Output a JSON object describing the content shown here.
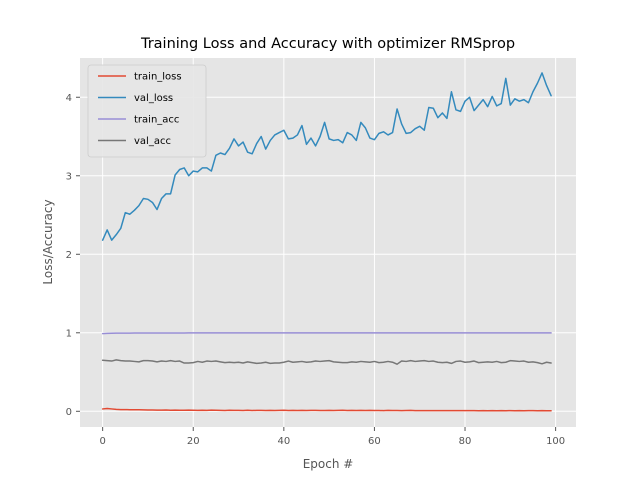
{
  "chart_data": {
    "type": "line",
    "title": "Training Loss and Accuracy with optimizer RMSprop",
    "xlabel": "Epoch #",
    "ylabel": "Loss/Accuracy",
    "xlim": [
      -5,
      104.5
    ],
    "ylim": [
      -0.2,
      4.5
    ],
    "x_ticks": [
      0,
      20,
      40,
      60,
      80,
      100
    ],
    "y_ticks": [
      0,
      1,
      2,
      3,
      4
    ],
    "grid": true,
    "legend_position": "top-left",
    "background_color": "#e5e5e5",
    "grid_color": "#ffffff",
    "x": [
      0,
      1,
      2,
      3,
      4,
      5,
      6,
      7,
      8,
      9,
      10,
      11,
      12,
      13,
      14,
      15,
      16,
      17,
      18,
      19,
      20,
      21,
      22,
      23,
      24,
      25,
      26,
      27,
      28,
      29,
      30,
      31,
      32,
      33,
      34,
      35,
      36,
      37,
      38,
      39,
      40,
      41,
      42,
      43,
      44,
      45,
      46,
      47,
      48,
      49,
      50,
      51,
      52,
      53,
      54,
      55,
      56,
      57,
      58,
      59,
      60,
      61,
      62,
      63,
      64,
      65,
      66,
      67,
      68,
      69,
      70,
      71,
      72,
      73,
      74,
      75,
      76,
      77,
      78,
      79,
      80,
      81,
      82,
      83,
      84,
      85,
      86,
      87,
      88,
      89,
      90,
      91,
      92,
      93,
      94,
      95,
      96,
      97,
      98,
      99
    ],
    "series": [
      {
        "name": "train_loss",
        "color": "#e24a33",
        "values": [
          0.03,
          0.035,
          0.03,
          0.025,
          0.022,
          0.022,
          0.02,
          0.02,
          0.02,
          0.018,
          0.017,
          0.016,
          0.015,
          0.015,
          0.016,
          0.014,
          0.015,
          0.014,
          0.013,
          0.015,
          0.013,
          0.012,
          0.014,
          0.012,
          0.015,
          0.013,
          0.012,
          0.01,
          0.013,
          0.011,
          0.012,
          0.01,
          0.014,
          0.01,
          0.012,
          0.011,
          0.01,
          0.012,
          0.01,
          0.011,
          0.013,
          0.01,
          0.011,
          0.01,
          0.012,
          0.01,
          0.011,
          0.012,
          0.01,
          0.01,
          0.011,
          0.01,
          0.012,
          0.013,
          0.01,
          0.011,
          0.01,
          0.012,
          0.01,
          0.011,
          0.01,
          0.01,
          0.009,
          0.011,
          0.01,
          0.01,
          0.009,
          0.01,
          0.012,
          0.009,
          0.008,
          0.008,
          0.009,
          0.008,
          0.009,
          0.008,
          0.009,
          0.008,
          0.008,
          0.008,
          0.009,
          0.008,
          0.008,
          0.007,
          0.008,
          0.007,
          0.008,
          0.007,
          0.008,
          0.007,
          0.009,
          0.007,
          0.008,
          0.007,
          0.008,
          0.008,
          0.007,
          0.008,
          0.007,
          0.007
        ]
      },
      {
        "name": "val_loss",
        "color": "#348abd",
        "values": [
          2.18,
          2.31,
          2.18,
          2.25,
          2.33,
          2.53,
          2.51,
          2.56,
          2.62,
          2.71,
          2.7,
          2.66,
          2.57,
          2.71,
          2.77,
          2.77,
          3.01,
          3.08,
          3.1,
          3.0,
          3.06,
          3.05,
          3.1,
          3.1,
          3.06,
          3.26,
          3.29,
          3.27,
          3.35,
          3.47,
          3.38,
          3.43,
          3.3,
          3.28,
          3.41,
          3.5,
          3.34,
          3.45,
          3.52,
          3.55,
          3.58,
          3.47,
          3.48,
          3.52,
          3.64,
          3.4,
          3.48,
          3.38,
          3.5,
          3.68,
          3.47,
          3.45,
          3.46,
          3.42,
          3.55,
          3.52,
          3.45,
          3.68,
          3.61,
          3.48,
          3.46,
          3.54,
          3.56,
          3.52,
          3.55,
          3.85,
          3.66,
          3.54,
          3.55,
          3.6,
          3.63,
          3.58,
          3.87,
          3.86,
          3.74,
          3.8,
          3.73,
          4.07,
          3.84,
          3.82,
          3.95,
          4.0,
          3.83,
          3.9,
          3.97,
          3.88,
          4.01,
          3.89,
          3.92,
          4.24,
          3.9,
          3.98,
          3.95,
          3.97,
          3.93,
          4.07,
          4.18,
          4.31,
          4.15,
          4.02
        ]
      },
      {
        "name": "train_acc",
        "color": "#988ed5",
        "values": [
          0.99,
          0.992,
          0.994,
          0.995,
          0.995,
          0.996,
          0.996,
          0.997,
          0.997,
          0.997,
          0.997,
          0.998,
          0.998,
          0.998,
          0.998,
          0.998,
          0.998,
          0.998,
          0.998,
          0.999,
          0.999,
          0.999,
          0.999,
          0.999,
          0.999,
          0.999,
          0.999,
          0.999,
          0.999,
          0.999,
          0.999,
          0.999,
          0.999,
          0.999,
          0.999,
          0.999,
          0.999,
          0.999,
          0.999,
          0.999,
          0.999,
          0.999,
          0.999,
          0.999,
          0.999,
          0.999,
          0.999,
          0.999,
          0.999,
          0.999,
          0.999,
          0.999,
          0.999,
          0.999,
          0.999,
          0.999,
          0.999,
          0.999,
          0.999,
          0.999,
          0.999,
          0.999,
          0.999,
          0.999,
          0.999,
          0.999,
          0.999,
          0.999,
          0.999,
          0.999,
          0.999,
          0.999,
          0.999,
          0.999,
          0.999,
          0.999,
          0.999,
          0.999,
          0.999,
          0.999,
          0.999,
          0.999,
          0.999,
          0.999,
          0.999,
          0.999,
          0.999,
          0.999,
          0.999,
          0.999,
          0.999,
          0.999,
          0.999,
          0.999,
          0.999,
          0.999,
          0.999,
          0.999,
          0.999,
          0.999
        ]
      },
      {
        "name": "val_acc",
        "color": "#777777",
        "values": [
          0.65,
          0.645,
          0.64,
          0.655,
          0.645,
          0.64,
          0.64,
          0.635,
          0.63,
          0.645,
          0.645,
          0.64,
          0.63,
          0.64,
          0.635,
          0.645,
          0.635,
          0.64,
          0.615,
          0.615,
          0.62,
          0.635,
          0.625,
          0.64,
          0.635,
          0.64,
          0.63,
          0.62,
          0.625,
          0.62,
          0.625,
          0.615,
          0.63,
          0.62,
          0.61,
          0.615,
          0.625,
          0.61,
          0.615,
          0.615,
          0.625,
          0.64,
          0.625,
          0.63,
          0.635,
          0.625,
          0.63,
          0.64,
          0.635,
          0.64,
          0.645,
          0.63,
          0.625,
          0.62,
          0.62,
          0.63,
          0.625,
          0.635,
          0.63,
          0.625,
          0.635,
          0.62,
          0.625,
          0.635,
          0.625,
          0.6,
          0.64,
          0.635,
          0.645,
          0.635,
          0.64,
          0.645,
          0.635,
          0.64,
          0.625,
          0.62,
          0.625,
          0.61,
          0.635,
          0.64,
          0.625,
          0.63,
          0.64,
          0.62,
          0.625,
          0.63,
          0.625,
          0.635,
          0.62,
          0.625,
          0.645,
          0.64,
          0.635,
          0.64,
          0.625,
          0.63,
          0.62,
          0.605,
          0.625,
          0.615
        ]
      }
    ]
  }
}
